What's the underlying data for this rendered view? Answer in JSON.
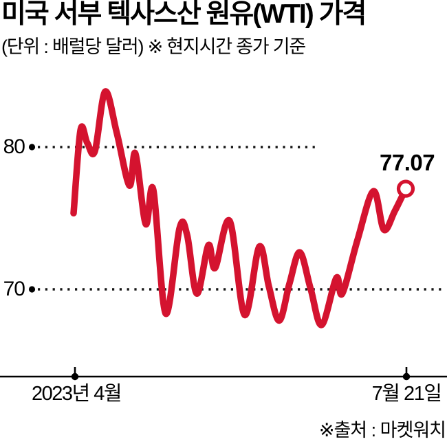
{
  "chart_data": {
    "type": "line",
    "title": "미국 서부 텍사스산 원유(WTI) 가격",
    "subtitle": "(단위 : 배럴당 달러) ※ 현지시간 종가 기준",
    "unit": "배럴당 달러",
    "basis_note": "현지시간 종가 기준",
    "source": "※출처 : 마켓워치",
    "x_tick_labels": [
      "2023년 4월",
      "7월 21일"
    ],
    "y_ticks": [
      80,
      70
    ],
    "y_tick_labels": [
      "80",
      "70"
    ],
    "end_label": "77.07",
    "last_value": 77.07,
    "line_color": "#d4132f",
    "grid": "dotted-horizontal",
    "legend": "none",
    "xlabel": "",
    "ylabel": "",
    "series": [
      {
        "name": "WTI",
        "points": [
          [
            0.0,
            75.35
          ],
          [
            0.021,
            81.2
          ],
          [
            0.041,
            80.3
          ],
          [
            0.064,
            79.7
          ],
          [
            0.095,
            83.9
          ],
          [
            0.13,
            81.0
          ],
          [
            0.168,
            77.3
          ],
          [
            0.186,
            79.55
          ],
          [
            0.217,
            74.6
          ],
          [
            0.24,
            77.0
          ],
          [
            0.277,
            68.3
          ],
          [
            0.319,
            74.3
          ],
          [
            0.342,
            73.8
          ],
          [
            0.371,
            69.7
          ],
          [
            0.406,
            73.1
          ],
          [
            0.426,
            71.5
          ],
          [
            0.47,
            74.8
          ],
          [
            0.515,
            68.2
          ],
          [
            0.559,
            73.0
          ],
          [
            0.588,
            70.2
          ],
          [
            0.619,
            67.8
          ],
          [
            0.65,
            70.4
          ],
          [
            0.681,
            72.6
          ],
          [
            0.714,
            70.0
          ],
          [
            0.747,
            67.5
          ],
          [
            0.791,
            70.8
          ],
          [
            0.809,
            69.7
          ],
          [
            0.855,
            73.5
          ],
          [
            0.903,
            76.9
          ],
          [
            0.934,
            74.2
          ],
          [
            0.967,
            75.5
          ],
          [
            1.0,
            77.07
          ]
        ]
      }
    ]
  }
}
